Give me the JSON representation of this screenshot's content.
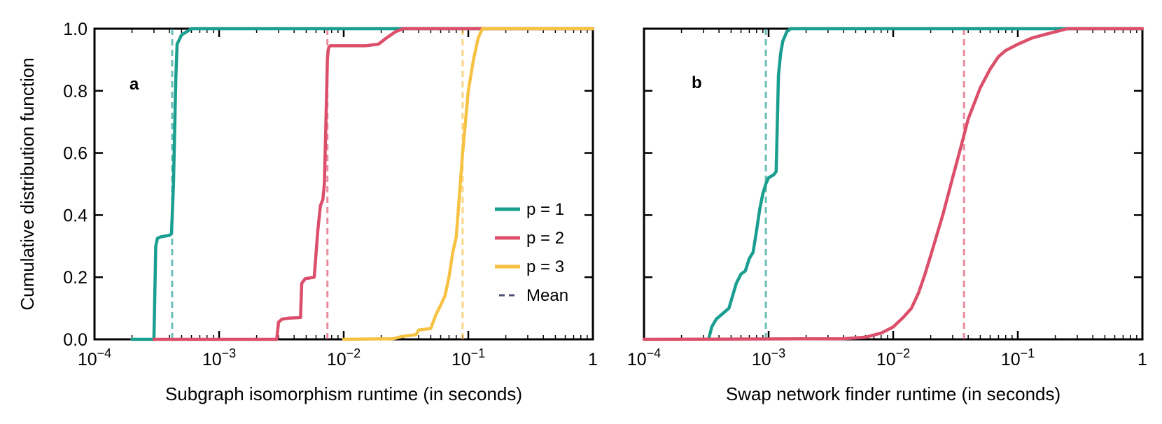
{
  "chart_data": [
    {
      "type": "line",
      "panel": "a",
      "xscale": "log",
      "xlim": [
        0.0001,
        1
      ],
      "ylim": [
        0,
        1
      ],
      "xlabel": "Subgraph isomorphism runtime (in seconds)",
      "ylabel": "Cumulative distribution function",
      "xtick_labels": [
        "10",
        "10",
        "10",
        "10",
        "1"
      ],
      "xtick_exponents": [
        "−4",
        "−3",
        "−2",
        "−1",
        ""
      ],
      "ytick_labels": [
        "0.0",
        "0.2",
        "0.4",
        "0.6",
        "0.8",
        "1.0"
      ],
      "legend": {
        "location": "lower-right",
        "entries": [
          {
            "label": "p = 1",
            "color": "#1a9e8f",
            "style": "solid"
          },
          {
            "label": "p = 2",
            "color": "#dc4f6b",
            "style": "solid"
          },
          {
            "label": "p = 3",
            "color": "#f6c243",
            "style": "solid"
          },
          {
            "label": "Mean",
            "color": "#4d5275",
            "style": "dashed"
          }
        ]
      },
      "series": [
        {
          "name": "p = 1",
          "color": "#1a9e8f",
          "x": [
            0.0002,
            0.0003,
            0.000305,
            0.00031,
            0.00032,
            0.00034,
            0.0004,
            0.000415,
            0.00043,
            0.00045,
            0.00046,
            0.0005,
            0.0006,
            0.01,
            1
          ],
          "y": [
            0,
            0,
            0.15,
            0.3,
            0.325,
            0.33,
            0.335,
            0.34,
            0.5,
            0.85,
            0.95,
            0.98,
            1.0,
            1.0,
            1.0
          ]
        },
        {
          "name": "p = 2",
          "color": "#dc4f6b",
          "x": [
            0.0003,
            0.0029,
            0.003,
            0.0032,
            0.0036,
            0.0045,
            0.0046,
            0.0049,
            0.0058,
            0.0062,
            0.0065,
            0.0068,
            0.007,
            0.0073,
            0.0074,
            0.0075,
            0.0076,
            0.0078,
            0.0085,
            0.01,
            0.015,
            0.019,
            0.022,
            0.026,
            0.03,
            1
          ],
          "y": [
            0,
            0,
            0.055,
            0.065,
            0.068,
            0.07,
            0.18,
            0.195,
            0.2,
            0.35,
            0.43,
            0.45,
            0.5,
            0.8,
            0.9,
            0.93,
            0.94,
            0.945,
            0.945,
            0.945,
            0.945,
            0.95,
            0.97,
            0.99,
            1.0,
            1.0
          ]
        },
        {
          "name": "p = 3",
          "color": "#f6c243",
          "x": [
            0.01,
            0.025,
            0.03,
            0.038,
            0.04,
            0.05,
            0.055,
            0.06,
            0.065,
            0.07,
            0.075,
            0.08,
            0.09,
            0.1,
            0.11,
            0.12,
            0.13,
            1
          ],
          "y": [
            0,
            0.002,
            0.01,
            0.015,
            0.03,
            0.035,
            0.08,
            0.11,
            0.14,
            0.2,
            0.28,
            0.33,
            0.6,
            0.8,
            0.9,
            0.97,
            1.0,
            1.0
          ]
        }
      ],
      "means": [
        {
          "name": "p = 1 mean",
          "x": 0.00042,
          "color": "#1a9e8f"
        },
        {
          "name": "p = 2 mean",
          "x": 0.0074,
          "color": "#dc4f6b"
        },
        {
          "name": "p = 3 mean",
          "x": 0.09,
          "color": "#f6c243"
        }
      ]
    },
    {
      "type": "line",
      "panel": "b",
      "xscale": "log",
      "xlim": [
        0.0001,
        1
      ],
      "ylim": [
        0,
        1
      ],
      "xlabel": "Swap network finder runtime (in seconds)",
      "ylabel": "",
      "xtick_labels": [
        "10",
        "10",
        "10",
        "10",
        "1"
      ],
      "xtick_exponents": [
        "−4",
        "−3",
        "−2",
        "−1",
        ""
      ],
      "ytick_labels": [],
      "series": [
        {
          "name": "p = 1",
          "color": "#1a9e8f",
          "x": [
            0.00033,
            0.00035,
            0.00038,
            0.00042,
            0.00048,
            0.00055,
            0.0006,
            0.00065,
            0.0007,
            0.00075,
            0.0008,
            0.00085,
            0.0009,
            0.00095,
            0.001,
            0.0011,
            0.00115,
            0.0012,
            0.00125,
            0.0013,
            0.0014,
            0.0015,
            1
          ],
          "y": [
            0,
            0.04,
            0.065,
            0.08,
            0.1,
            0.18,
            0.21,
            0.22,
            0.26,
            0.28,
            0.35,
            0.42,
            0.47,
            0.5,
            0.52,
            0.53,
            0.54,
            0.85,
            0.92,
            0.96,
            0.99,
            1.0,
            1.0
          ]
        },
        {
          "name": "p = 2",
          "color": "#dc4f6b",
          "x": [
            0.0001,
            0.004,
            0.006,
            0.008,
            0.01,
            0.012,
            0.014,
            0.016,
            0.018,
            0.02,
            0.025,
            0.03,
            0.035,
            0.04,
            0.05,
            0.06,
            0.07,
            0.08,
            0.1,
            0.13,
            0.16,
            0.2,
            0.25,
            0.3,
            1
          ],
          "y": [
            0,
            0.002,
            0.007,
            0.02,
            0.04,
            0.07,
            0.1,
            0.15,
            0.21,
            0.27,
            0.4,
            0.52,
            0.62,
            0.71,
            0.81,
            0.87,
            0.91,
            0.93,
            0.95,
            0.97,
            0.98,
            0.99,
            1.0,
            1.0,
            1.0
          ]
        }
      ],
      "means": [
        {
          "name": "p = 1 mean",
          "x": 0.00095,
          "color": "#1a9e8f"
        },
        {
          "name": "p = 2 mean",
          "x": 0.037,
          "color": "#dc4f6b"
        }
      ]
    }
  ]
}
